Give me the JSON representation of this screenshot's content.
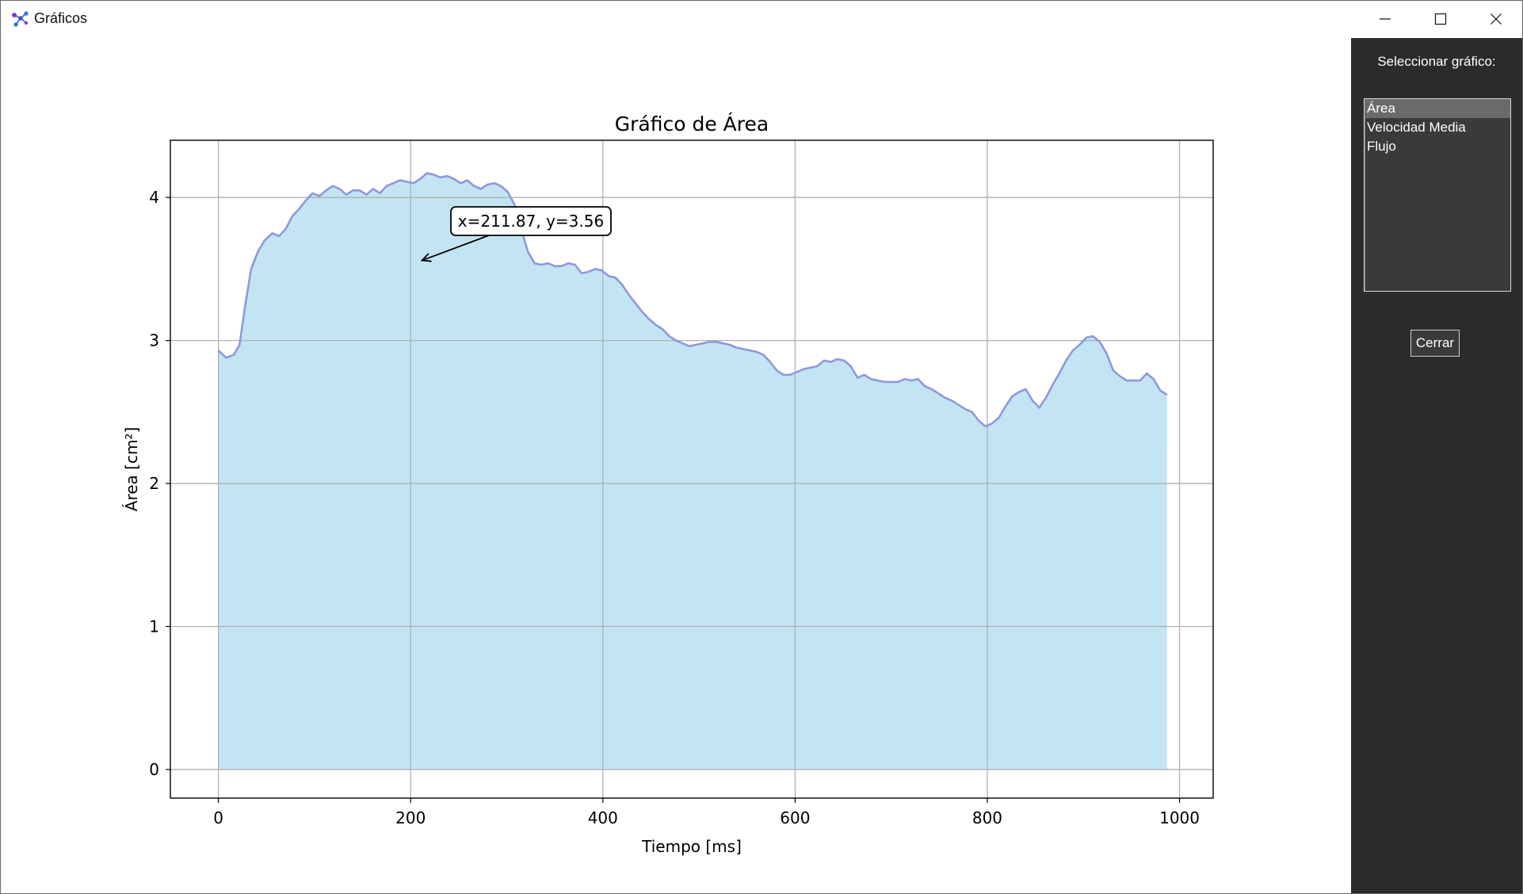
{
  "window": {
    "title": "Gráficos",
    "controls": [
      "minimize-icon",
      "maximize-icon",
      "close-icon"
    ]
  },
  "sidebar": {
    "label": "Seleccionar gráfico:",
    "options": [
      "Área",
      "Velocidad Media",
      "Flujo"
    ],
    "selected_index": 0,
    "close_button": "Cerrar"
  },
  "colors": {
    "fill": "#c3e5f3",
    "line": "#8f97e0",
    "sidebar_bg": "#2b2b2b",
    "grid": "#b0b0b0"
  },
  "chart_data": {
    "type": "area",
    "title": "Gráfico de Área",
    "xlabel": "Tiempo [ms]",
    "ylabel": "Área [cm²]",
    "xlim": [
      -50,
      1035
    ],
    "ylim": [
      -0.2,
      4.4
    ],
    "xticks": [
      0,
      200,
      400,
      600,
      800,
      1000
    ],
    "yticks": [
      0,
      1,
      2,
      3,
      4
    ],
    "grid": true,
    "annotation": {
      "text": "x=211.87, y=3.56",
      "x": 211.87,
      "y": 3.56
    },
    "series": [
      {
        "x": [
          0,
          8,
          16,
          22,
          28,
          34,
          41,
          48,
          56,
          63,
          70,
          77,
          84,
          91,
          98,
          105,
          112,
          119,
          126,
          133,
          140,
          147,
          154,
          161,
          168,
          175,
          182,
          189,
          196,
          203,
          210,
          217,
          224,
          231,
          238,
          245,
          252,
          259,
          266,
          273,
          280,
          287,
          294,
          301,
          308,
          315,
          322,
          329,
          336,
          343,
          350,
          357,
          364,
          371,
          378,
          385,
          392,
          399,
          406,
          413,
          420,
          427,
          434,
          441,
          448,
          455,
          462,
          469,
          476,
          483,
          490,
          497,
          504,
          511,
          518,
          525,
          532,
          539,
          546,
          553,
          560,
          567,
          574,
          581,
          588,
          595,
          602,
          609,
          616,
          623,
          630,
          637,
          644,
          651,
          658,
          665,
          672,
          679,
          686,
          693,
          700,
          707,
          714,
          721,
          728,
          735,
          742,
          749,
          756,
          763,
          770,
          777,
          784,
          791,
          798,
          805,
          812,
          819,
          826,
          833,
          840,
          847,
          854,
          861,
          868,
          875,
          882,
          889,
          896,
          903,
          910,
          917,
          924,
          931,
          938,
          945,
          952,
          959,
          966,
          973,
          980,
          987
        ],
        "y": [
          2.93,
          2.88,
          2.9,
          2.97,
          3.25,
          3.5,
          3.62,
          3.7,
          3.75,
          3.73,
          3.78,
          3.87,
          3.92,
          3.98,
          4.03,
          4.01,
          4.05,
          4.08,
          4.06,
          4.02,
          4.05,
          4.05,
          4.02,
          4.06,
          4.03,
          4.08,
          4.1,
          4.12,
          4.11,
          4.1,
          4.13,
          4.17,
          4.16,
          4.14,
          4.15,
          4.13,
          4.1,
          4.12,
          4.08,
          4.06,
          4.09,
          4.1,
          4.08,
          4.04,
          3.95,
          3.78,
          3.62,
          3.54,
          3.53,
          3.54,
          3.52,
          3.52,
          3.54,
          3.53,
          3.47,
          3.48,
          3.5,
          3.49,
          3.45,
          3.44,
          3.39,
          3.32,
          3.26,
          3.2,
          3.15,
          3.11,
          3.08,
          3.03,
          3.0,
          2.98,
          2.96,
          2.97,
          2.98,
          2.99,
          2.99,
          2.98,
          2.97,
          2.95,
          2.94,
          2.93,
          2.92,
          2.9,
          2.85,
          2.79,
          2.76,
          2.76,
          2.78,
          2.8,
          2.81,
          2.82,
          2.86,
          2.85,
          2.87,
          2.86,
          2.82,
          2.74,
          2.76,
          2.73,
          2.72,
          2.71,
          2.71,
          2.71,
          2.73,
          2.72,
          2.73,
          2.68,
          2.66,
          2.63,
          2.6,
          2.58,
          2.55,
          2.52,
          2.5,
          2.44,
          2.4,
          2.42,
          2.46,
          2.54,
          2.61,
          2.64,
          2.66,
          2.58,
          2.53,
          2.6,
          2.69,
          2.77,
          2.86,
          2.93,
          2.97,
          3.02,
          3.03,
          2.99,
          2.91,
          2.79,
          2.75,
          2.72,
          2.72,
          2.72,
          2.77,
          2.73,
          2.65,
          2.62
        ]
      }
    ]
  }
}
